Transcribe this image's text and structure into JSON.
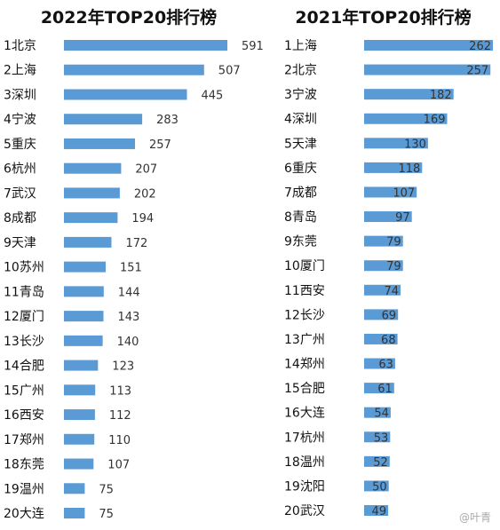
{
  "chart_data": [
    {
      "type": "bar",
      "orientation": "horizontal",
      "title": "2022年TOP20排行榜",
      "categories": [
        "1北京",
        "2上海",
        "3深圳",
        "4宁波",
        "5重庆",
        "6杭州",
        "7武汉",
        "8成都",
        "9天津",
        "10苏州",
        "11青岛",
        "12厦门",
        "13长沙",
        "14合肥",
        "15广州",
        "16西安",
        "17郑州",
        "18东莞",
        "19温州",
        "20大连"
      ],
      "values": [
        591,
        507,
        445,
        283,
        257,
        207,
        202,
        194,
        172,
        151,
        144,
        143,
        140,
        123,
        113,
        112,
        110,
        107,
        75,
        75
      ],
      "bar_color": "#5b9bd5",
      "label_position": "outside"
    },
    {
      "type": "bar",
      "orientation": "horizontal",
      "title": "2021年TOP20排行榜",
      "categories": [
        "1上海",
        "2北京",
        "3宁波",
        "4深圳",
        "5天津",
        "6重庆",
        "7成都",
        "8青岛",
        "9东莞",
        "10厦门",
        "11西安",
        "12长沙",
        "13广州",
        "14郑州",
        "15合肥",
        "16大连",
        "17杭州",
        "18温州",
        "19沈阳",
        "20武汉"
      ],
      "values": [
        262,
        257,
        182,
        169,
        130,
        118,
        107,
        97,
        79,
        79,
        74,
        69,
        68,
        63,
        61,
        54,
        53,
        52,
        50,
        49
      ],
      "bar_color": "#5b9bd5",
      "label_position": "inside-end"
    }
  ],
  "watermark": "@叶青"
}
